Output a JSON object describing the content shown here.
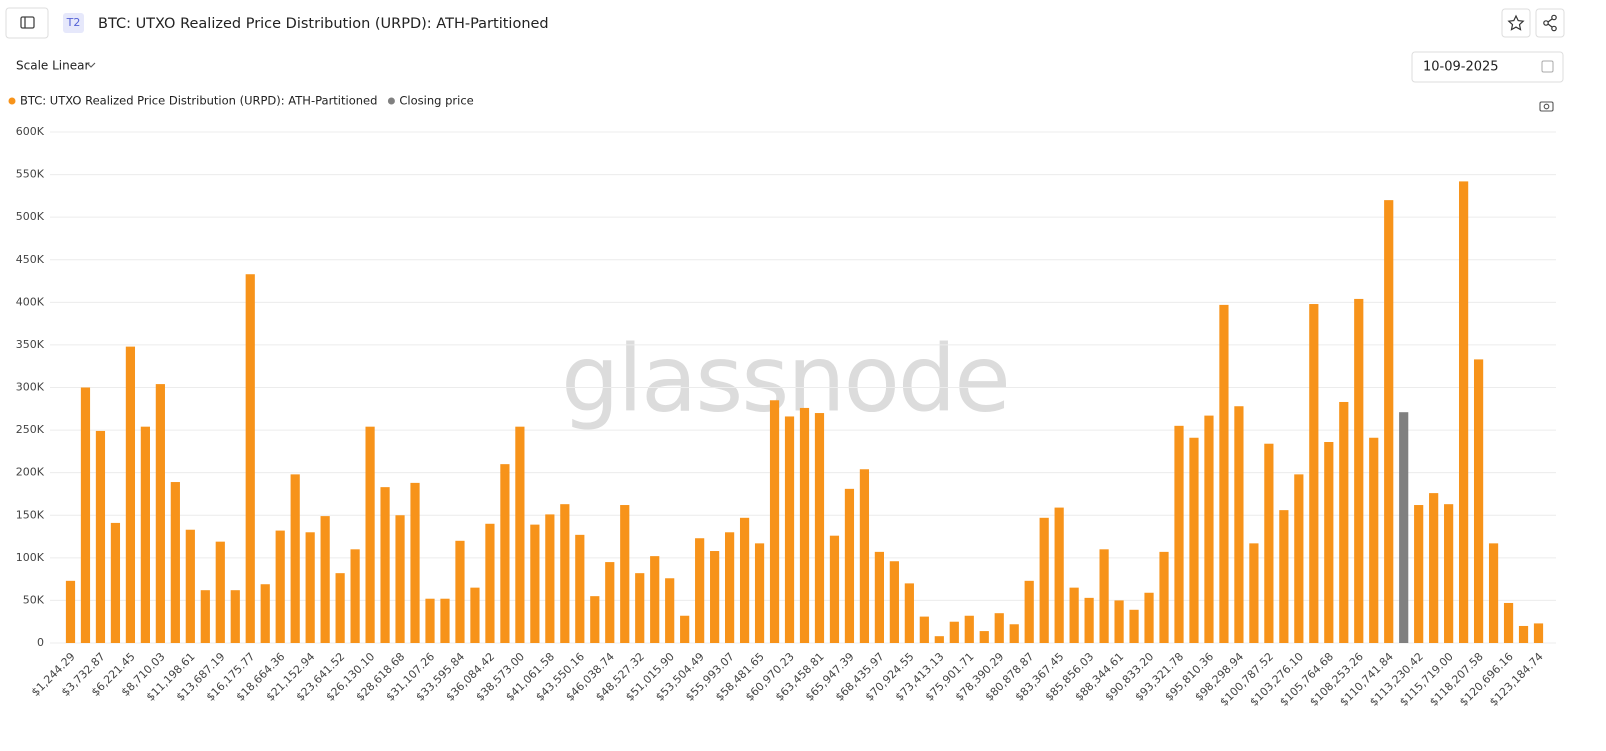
{
  "ui": {
    "badge": "T2",
    "scale": "Scale Linear",
    "date": "10-09-2025",
    "watermark": "glassnode"
  },
  "chart_data": {
    "type": "bar",
    "title": "BTC: UTXO Realized Price Distribution (URPD): ATH-Partitioned",
    "categories": [
      "$1,244.29",
      null,
      "$3,732.87",
      null,
      "$6,221.45",
      null,
      "$8,710.03",
      null,
      "$11,198.61",
      null,
      "$13,687.19",
      null,
      "$16,175.77",
      null,
      "$18,664.36",
      null,
      "$21,152.94",
      null,
      "$23,641.52",
      null,
      "$26,130.10",
      null,
      "$28,618.68",
      null,
      "$31,107.26",
      null,
      "$33,595.84",
      null,
      "$36,084.42",
      null,
      "$38,573.00",
      null,
      "$41,061.58",
      null,
      "$43,550.16",
      null,
      "$46,038.74",
      null,
      "$48,527.32",
      null,
      "$51,015.90",
      null,
      "$53,504.49",
      null,
      "$55,993.07",
      null,
      "$58,481.65",
      null,
      "$60,970.23",
      null,
      "$63,458.81",
      null,
      "$65,947.39",
      null,
      "$68,435.97",
      null,
      "$70,924.55",
      null,
      "$73,413.13",
      null,
      "$75,901.71",
      null,
      "$78,390.29",
      null,
      "$80,878.87",
      null,
      "$83,367.45",
      null,
      "$85,856.03",
      null,
      "$88,344.61",
      null,
      "$90,833.20",
      null,
      "$93,321.78",
      null,
      "$95,810.36",
      null,
      "$98,298.94",
      null,
      "$100,787.52",
      null,
      "$103,276.10",
      null,
      "$105,764.68",
      null,
      "$108,253.26",
      null,
      "$110,741.84",
      null,
      "$113,230.42",
      null,
      "$115,719.00",
      null,
      "$118,207.58",
      null,
      "$120,696.16",
      null,
      "$123,184.74"
    ],
    "series": [
      {
        "name": "BTC: UTXO Realized Price Distribution (URPD): ATH-Partitioned",
        "color": "#f7931a",
        "values": [
          73000,
          300000,
          249000,
          141000,
          348000,
          254000,
          304000,
          189000,
          133000,
          62000,
          119000,
          62000,
          433000,
          69000,
          132000,
          198000,
          130000,
          149000,
          82000,
          110000,
          254000,
          183000,
          150000,
          188000,
          52000,
          52000,
          120000,
          65000,
          140000,
          210000,
          254000,
          139000,
          151000,
          163000,
          127000,
          55000,
          95000,
          162000,
          82000,
          102000,
          76000,
          32000,
          123000,
          108000,
          130000,
          147000,
          117000,
          285000,
          266000,
          276000,
          270000,
          126000,
          181000,
          204000,
          107000,
          96000,
          70000,
          31000,
          8000,
          25000,
          32000,
          14000,
          35000,
          22000,
          73000,
          147000,
          159000,
          65000,
          53000,
          110000,
          50000,
          39000,
          59000,
          107000,
          255000,
          241000,
          267000,
          397000,
          278000,
          117000,
          234000,
          156000,
          198000,
          398000,
          236000,
          283000,
          404000,
          241000,
          520000,
          null,
          162000,
          176000,
          163000,
          542000,
          333000,
          117000,
          47000,
          20000,
          23000
        ]
      },
      {
        "name": "Closing price",
        "color": "#808080",
        "values": [
          null,
          null,
          null,
          null,
          null,
          null,
          null,
          null,
          null,
          null,
          null,
          null,
          null,
          null,
          null,
          null,
          null,
          null,
          null,
          null,
          null,
          null,
          null,
          null,
          null,
          null,
          null,
          null,
          null,
          null,
          null,
          null,
          null,
          null,
          null,
          null,
          null,
          null,
          null,
          null,
          null,
          null,
          null,
          null,
          null,
          null,
          null,
          null,
          null,
          null,
          null,
          null,
          null,
          null,
          null,
          null,
          null,
          null,
          null,
          null,
          null,
          null,
          null,
          null,
          null,
          null,
          null,
          null,
          null,
          null,
          null,
          null,
          null,
          null,
          null,
          null,
          null,
          null,
          null,
          null,
          null,
          null,
          null,
          null,
          null,
          null,
          null,
          null,
          null,
          271000,
          null,
          null,
          null,
          null,
          null,
          null,
          null,
          null,
          null
        ]
      }
    ],
    "ylim": [
      0,
      600000
    ],
    "yticks": [
      0,
      {
        "value": 50000,
        "label": "50K"
      },
      {
        "value": 100000,
        "label": "100K"
      },
      {
        "value": 150000,
        "label": "150K"
      },
      {
        "value": 200000,
        "label": "200K"
      },
      {
        "value": 250000,
        "label": "250K"
      },
      {
        "value": 300000,
        "label": "300K"
      },
      {
        "value": 350000,
        "label": "350K"
      },
      {
        "value": 400000,
        "label": "400K"
      },
      {
        "value": 450000,
        "label": "450K"
      },
      {
        "value": 500000,
        "label": "500K"
      },
      {
        "value": 550000,
        "label": "550K"
      },
      {
        "value": 600000,
        "label": {
          "value": 600000,
          "label": "600K"
        }
      }
    ],
    "grid": true
  }
}
